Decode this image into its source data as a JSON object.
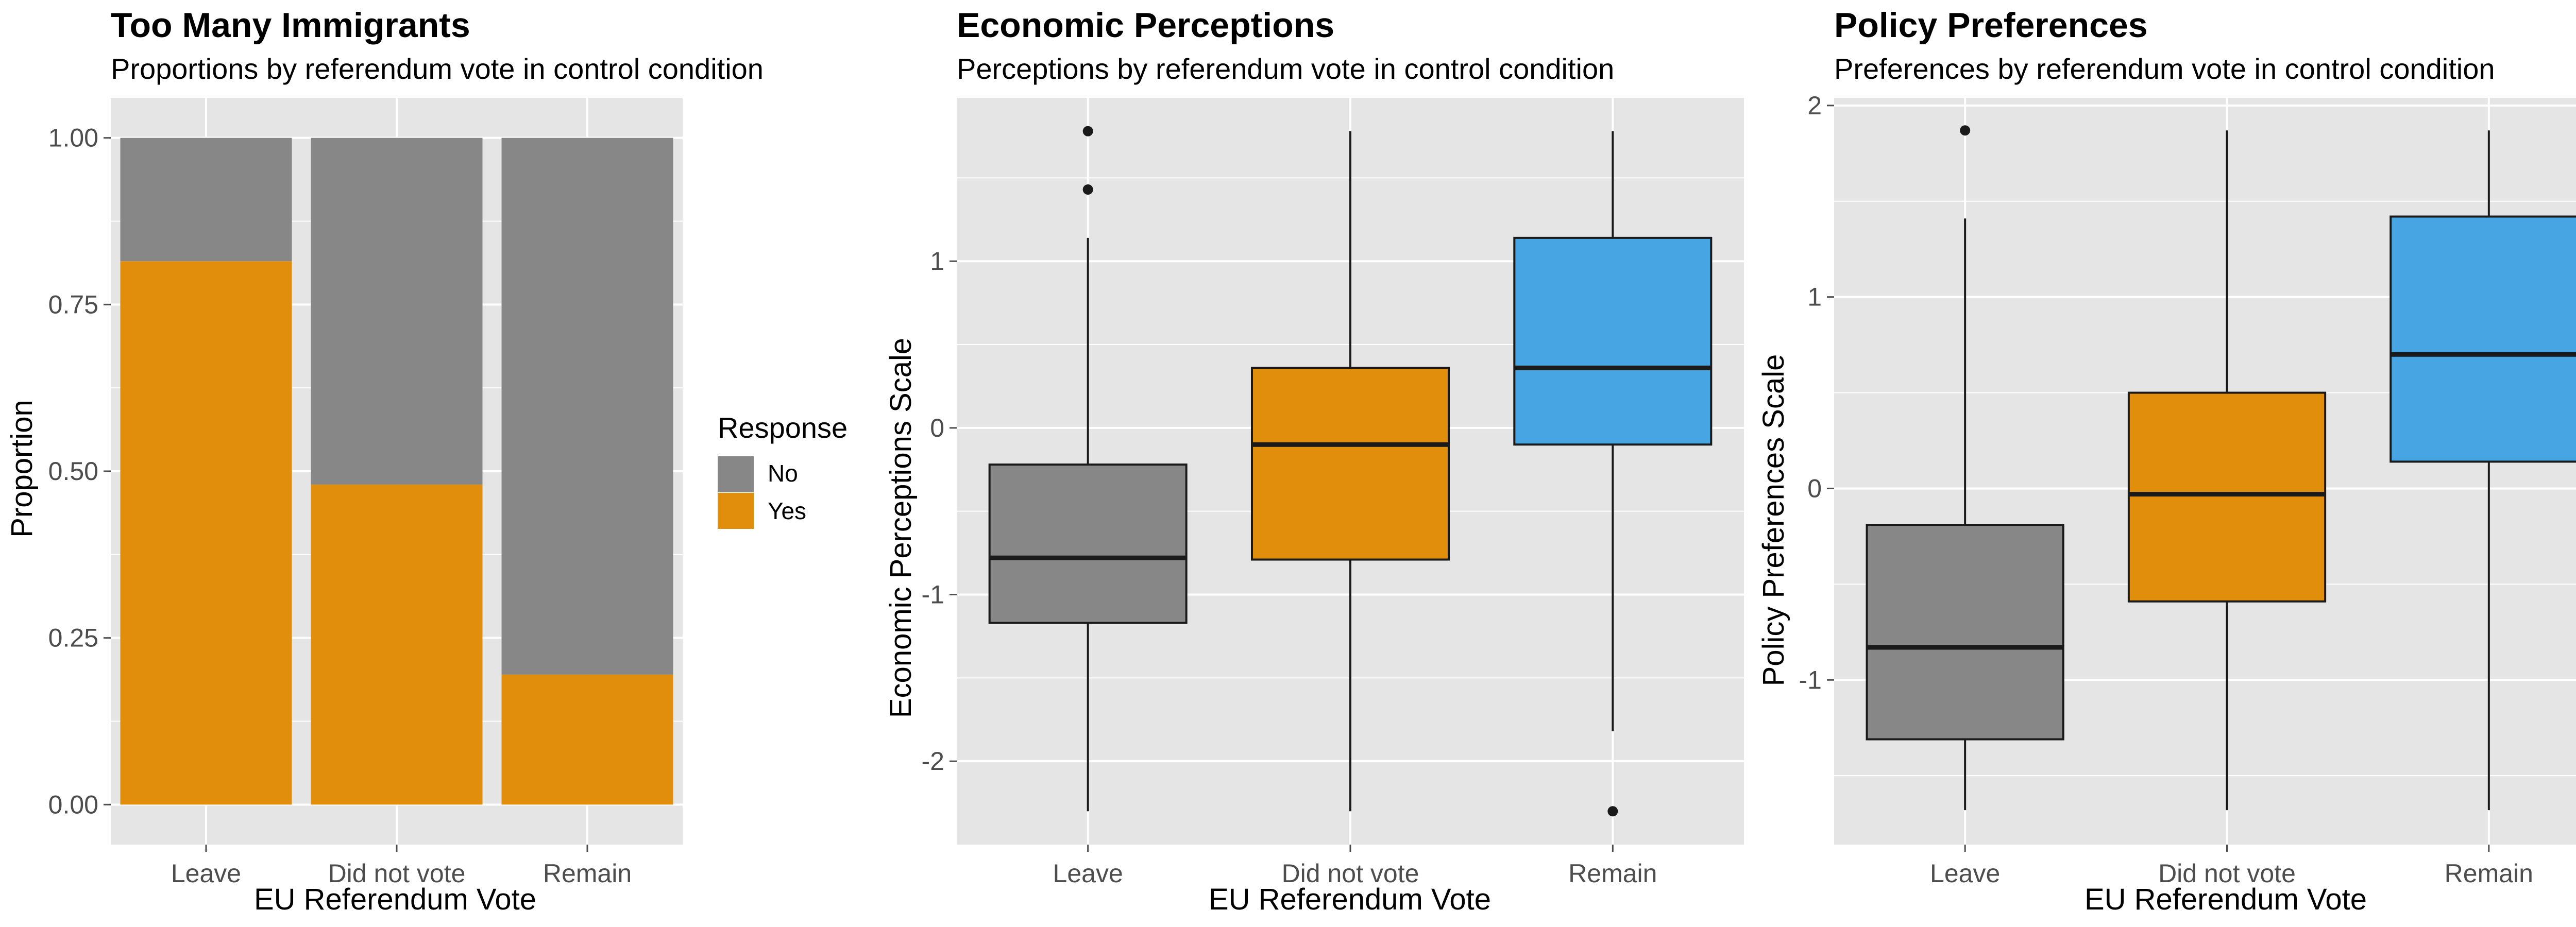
{
  "chart_data": [
    {
      "type": "bar",
      "stacked": true,
      "title": "Too Many Immigrants",
      "subtitle": "Proportions by referendum vote in control condition",
      "xlabel": "EU Referendum Vote",
      "ylabel": "Proportion",
      "categories": [
        "Leave",
        "Did not vote",
        "Remain"
      ],
      "series": [
        {
          "name": "Yes",
          "values": [
            0.815,
            0.48,
            0.195
          ],
          "color": "#E08E0B"
        },
        {
          "name": "No",
          "values": [
            0.185,
            0.52,
            0.805
          ],
          "color": "#878787"
        }
      ],
      "ylim": [
        -0.06,
        1.06
      ],
      "yticks": [
        0,
        0.25,
        0.5,
        0.75,
        1
      ],
      "ytick_labels": [
        "0.00",
        "0.25",
        "0.50",
        "0.75",
        "1.00"
      ],
      "legend": {
        "title": "Response",
        "items": [
          "No",
          "Yes"
        ],
        "position": "right"
      },
      "grid": true
    },
    {
      "type": "box",
      "title": "Economic Perceptions",
      "subtitle": "Perceptions by referendum vote in control condition",
      "xlabel": "EU Referendum Vote",
      "ylabel": "Economic Perceptions Scale",
      "categories": [
        "Leave",
        "Did not vote",
        "Remain"
      ],
      "boxes": [
        {
          "min": -2.3,
          "q1": -1.17,
          "median": -0.78,
          "q3": -0.22,
          "max": 1.14,
          "outliers": [
            1.43,
            1.78
          ],
          "color": "#878787"
        },
        {
          "min": -2.3,
          "q1": -0.79,
          "median": -0.1,
          "q3": 0.36,
          "max": 1.78,
          "outliers": [],
          "color": "#E08E0B"
        },
        {
          "min": -1.82,
          "q1": -0.1,
          "median": 0.36,
          "q3": 1.14,
          "max": 1.78,
          "outliers": [
            -2.3
          ],
          "color": "#47A5E4"
        }
      ],
      "ylim": [
        -2.5,
        1.98
      ],
      "yticks": [
        -2,
        -1,
        0,
        1
      ],
      "grid": true
    },
    {
      "type": "box",
      "title": "Policy Preferences",
      "subtitle": "Preferences by referendum vote in control condition",
      "xlabel": "EU Referendum Vote",
      "ylabel": "Policy Preferences Scale",
      "categories": [
        "Leave",
        "Did not vote",
        "Remain"
      ],
      "boxes": [
        {
          "min": -1.68,
          "q1": -1.31,
          "median": -0.83,
          "q3": -0.19,
          "max": 1.41,
          "outliers": [
            1.87
          ],
          "color": "#878787"
        },
        {
          "min": -1.68,
          "q1": -0.59,
          "median": -0.03,
          "q3": 0.5,
          "max": 1.87,
          "outliers": [],
          "color": "#E08E0B"
        },
        {
          "min": -1.68,
          "q1": 0.14,
          "median": 0.7,
          "q3": 1.42,
          "max": 1.87,
          "outliers": [],
          "color": "#47A5E4"
        }
      ],
      "ylim": [
        -1.86,
        2.04
      ],
      "yticks": [
        -1,
        0,
        1,
        2
      ],
      "grid": true
    }
  ],
  "style": {
    "panel_bg": "#E5E5E5",
    "grid_color": "#FFFFFF",
    "tick_color": "#4D4D4D",
    "line_color": "#1A1A1A"
  }
}
